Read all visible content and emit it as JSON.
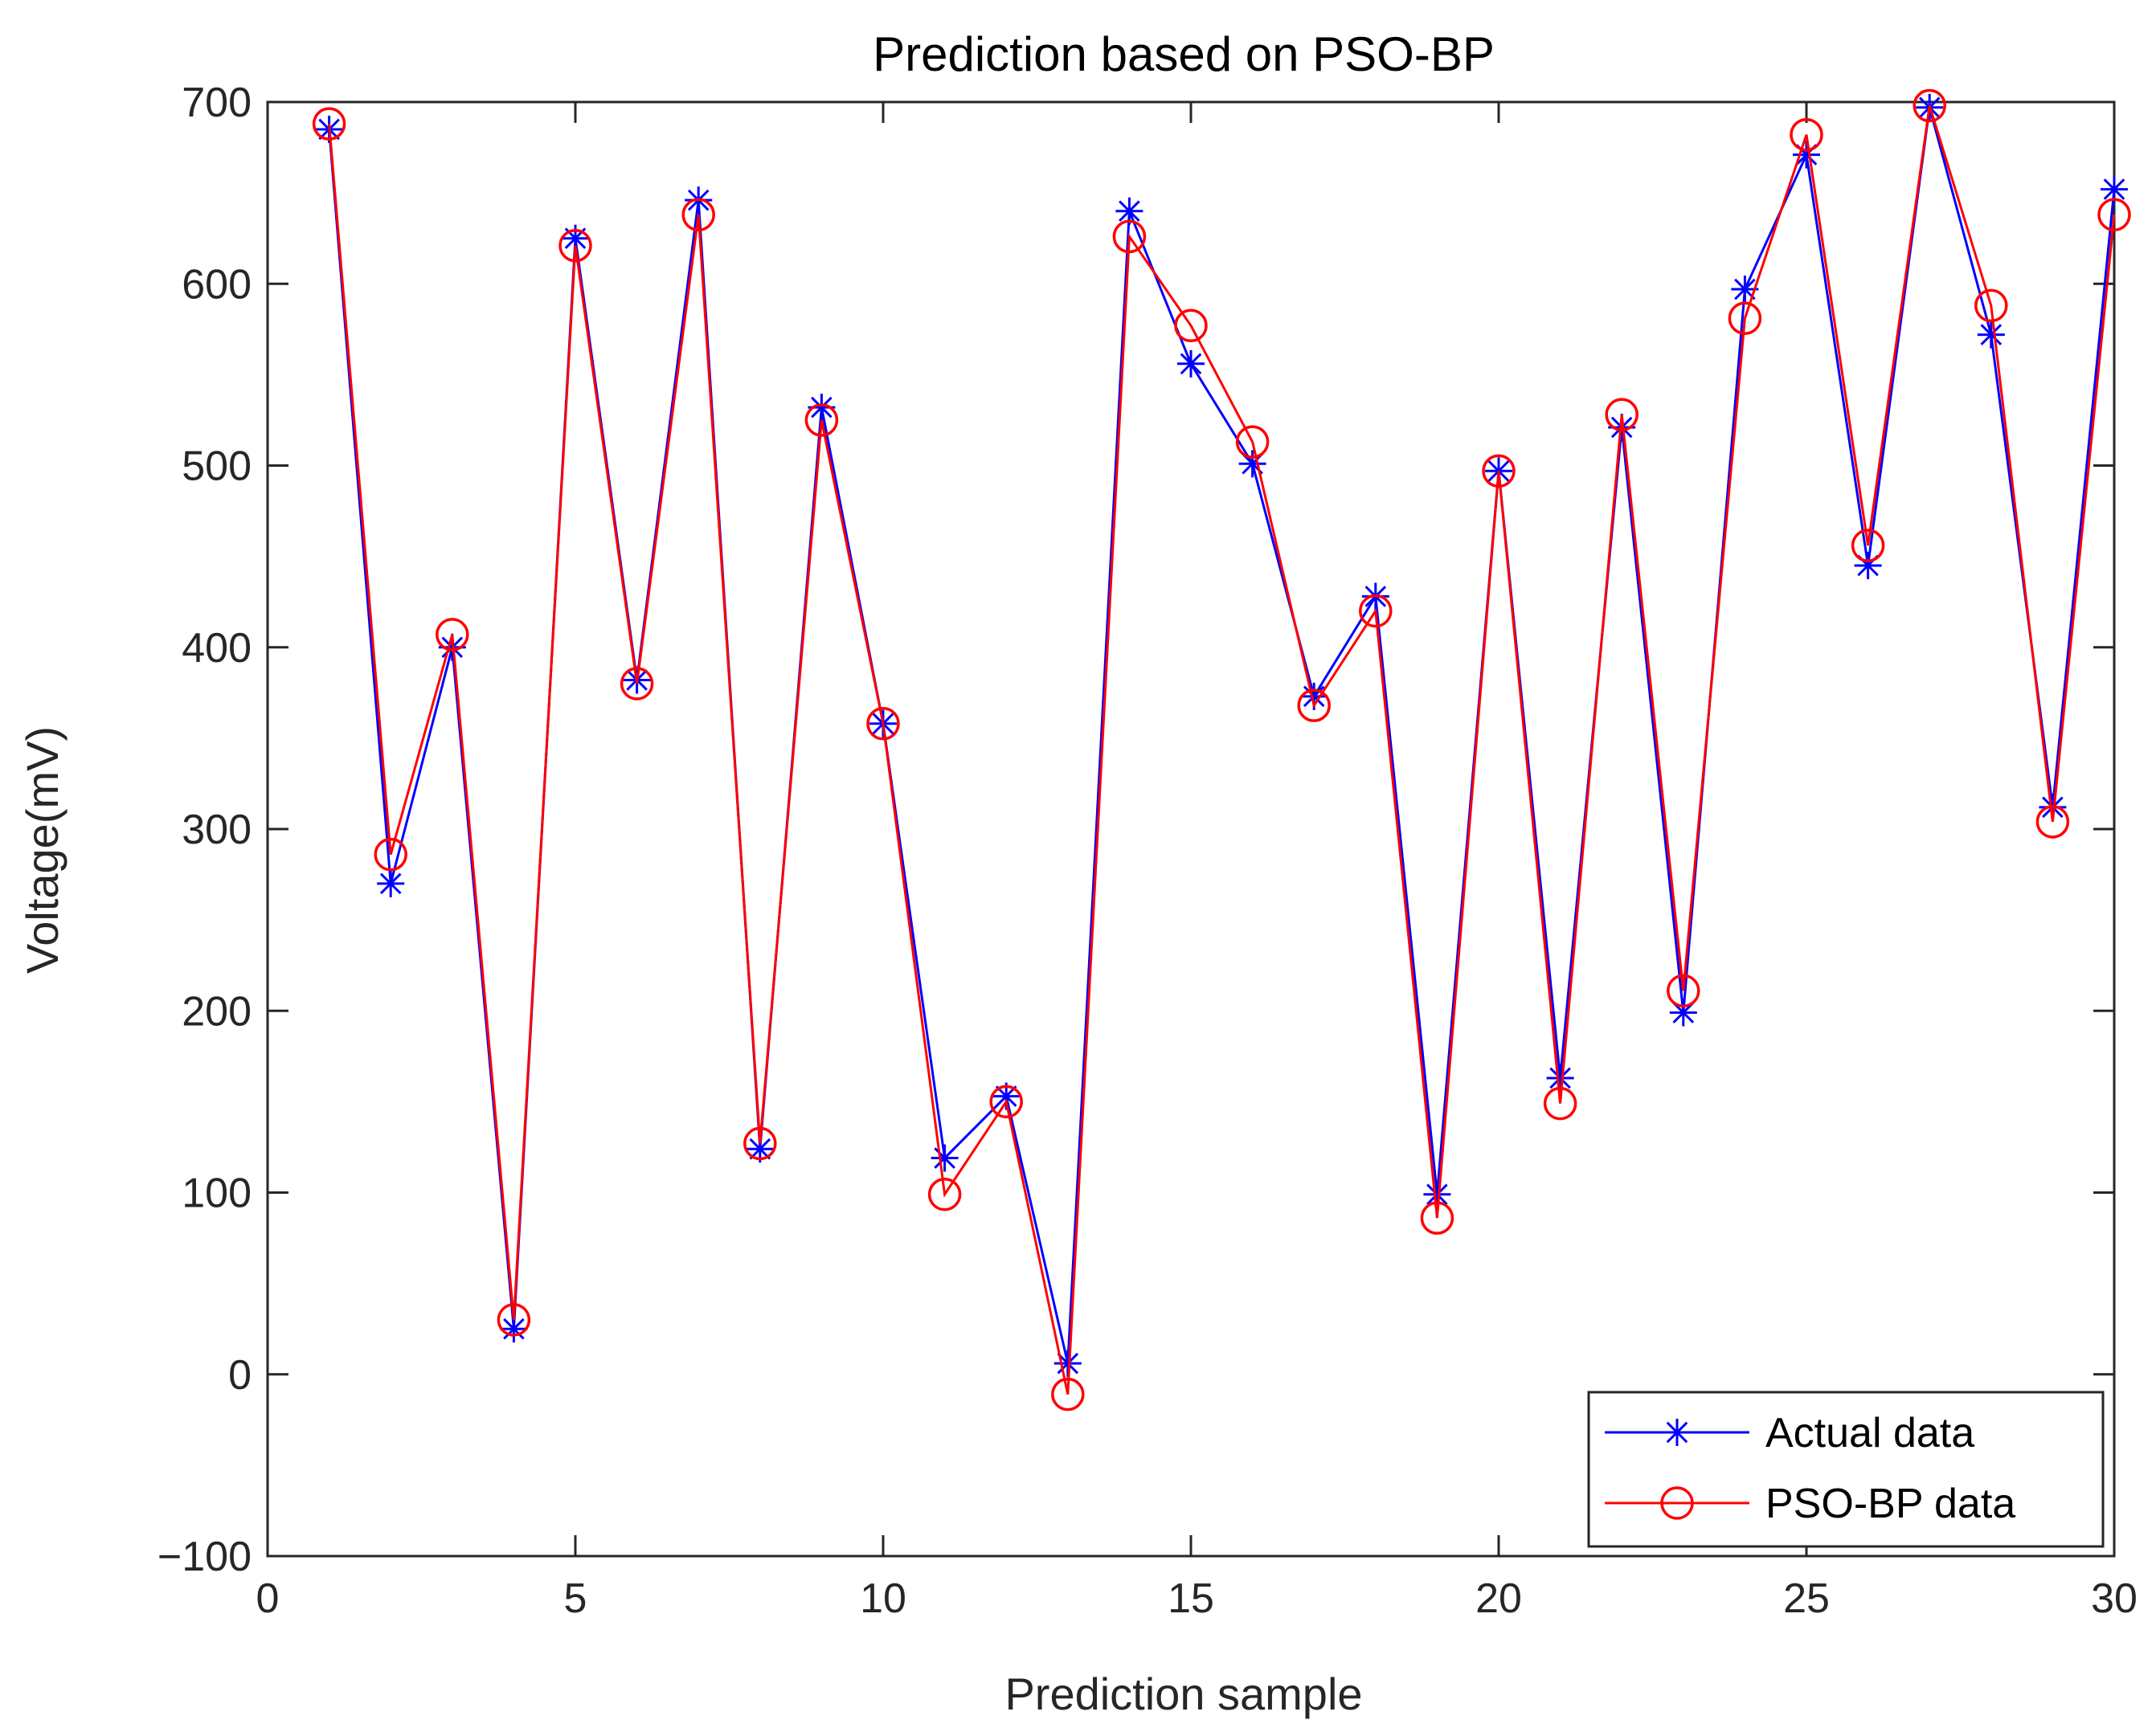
{
  "chart_data": {
    "type": "line",
    "title": "Prediction based on PSO-BP",
    "xlabel": "Prediction sample",
    "ylabel": "Voltage(mV)",
    "xlim": [
      0,
      30
    ],
    "ylim": [
      -100,
      700
    ],
    "xticks": [
      0,
      5,
      10,
      15,
      20,
      25,
      30
    ],
    "yticks": [
      -100,
      0,
      100,
      200,
      300,
      400,
      500,
      600,
      700
    ],
    "ytick_labels": [
      "−100",
      "0",
      "100",
      "200",
      "300",
      "400",
      "500",
      "600",
      "700"
    ],
    "grid": false,
    "legend_position": "bottom-right",
    "x": [
      1,
      2,
      3,
      4,
      5,
      6,
      7,
      8,
      9,
      10,
      11,
      12,
      13,
      14,
      15,
      16,
      17,
      18,
      19,
      20,
      21,
      22,
      23,
      24,
      25,
      26,
      27,
      28,
      29,
      30
    ],
    "series": [
      {
        "name": "Actual data",
        "color": "#0000ff",
        "marker": "asterisk",
        "values": [
          685,
          270,
          400,
          25,
          625,
          382,
          646,
          124,
          532,
          358,
          119,
          153,
          6,
          640,
          556,
          501,
          373,
          428,
          99,
          497,
          163,
          521,
          199,
          597,
          671,
          445,
          697,
          572,
          312,
          652
        ]
      },
      {
        "name": "PSO-BP data",
        "color": "#ff0000",
        "marker": "circle",
        "values": [
          688,
          286,
          407,
          30,
          621,
          380,
          638,
          127,
          525,
          358,
          99,
          150,
          -11,
          626,
          577,
          513,
          368,
          420,
          86,
          497,
          149,
          528,
          211,
          581,
          682,
          456,
          698,
          588,
          304,
          638
        ]
      }
    ]
  }
}
